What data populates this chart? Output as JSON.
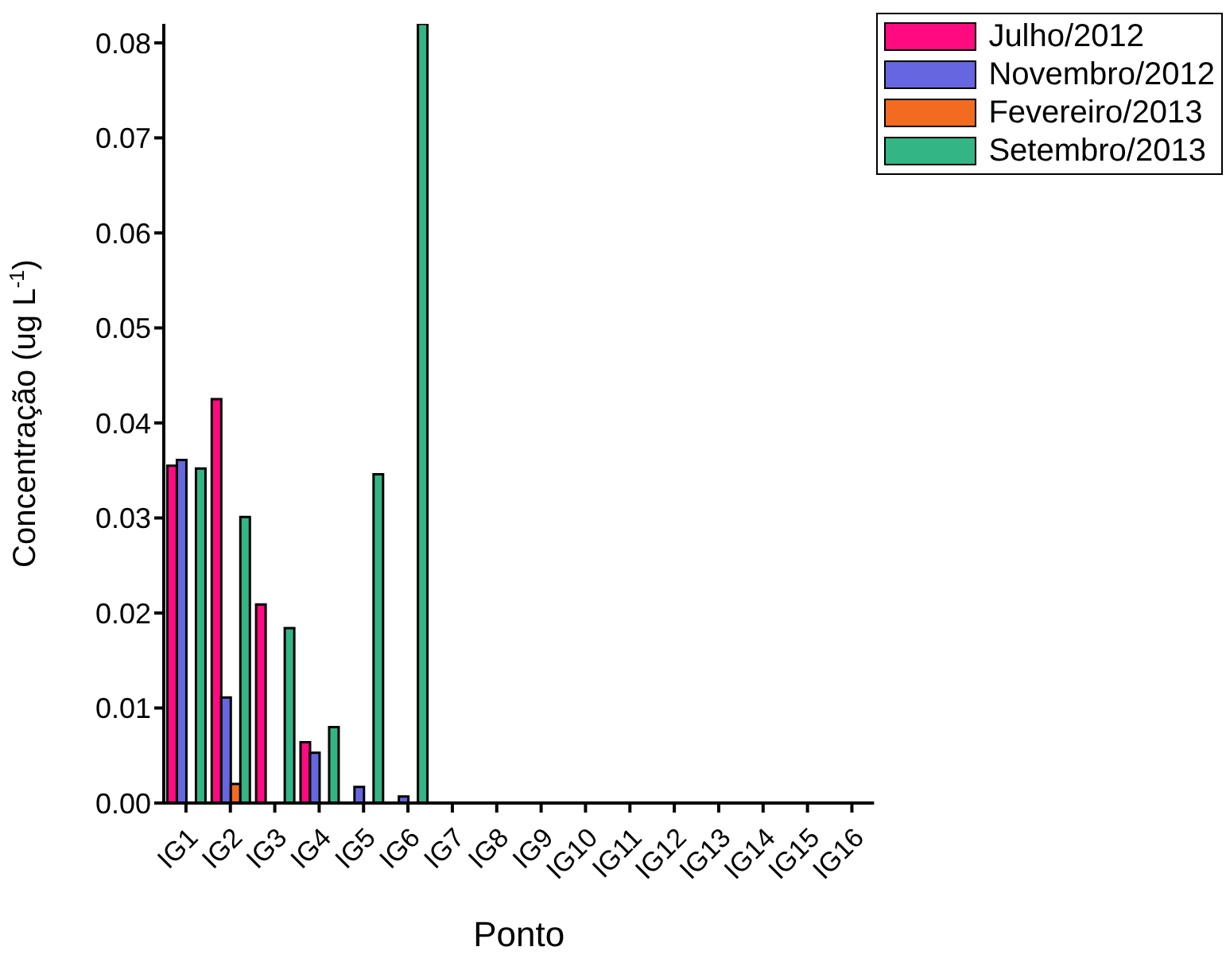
{
  "chart_data": {
    "type": "bar",
    "xlabel": "Ponto",
    "ylabel": "Concentração (ug L$^{-1}$)",
    "categories": [
      "IG1",
      "IG2",
      "IG3",
      "IG4",
      "IG5",
      "IG6",
      "IG7",
      "IG8",
      "IG9",
      "IG10",
      "IG11",
      "IG12",
      "IG13",
      "IG14",
      "IG15",
      "IG16"
    ],
    "series": [
      {
        "name": "Julho/2012",
        "color": "#ff0a80",
        "values": [
          0.0355,
          0.0425,
          0.0209,
          0.0064,
          null,
          null,
          null,
          null,
          null,
          null,
          null,
          null,
          null,
          null,
          null,
          null
        ]
      },
      {
        "name": "Novembro/2012",
        "color": "#6666e0",
        "values": [
          0.0361,
          0.0111,
          null,
          0.0053,
          0.0017,
          0.0007,
          null,
          null,
          null,
          null,
          null,
          null,
          null,
          null,
          null,
          null
        ]
      },
      {
        "name": "Fevereiro/2013",
        "color": "#f26b21",
        "values": [
          null,
          0.002,
          null,
          null,
          null,
          null,
          null,
          null,
          null,
          null,
          null,
          null,
          null,
          null,
          null,
          null
        ]
      },
      {
        "name": "Setembro/2013",
        "color": "#33b586",
        "values": [
          0.0352,
          0.0301,
          0.0184,
          0.008,
          0.0346,
          0.082,
          null,
          null,
          null,
          null,
          null,
          null,
          null,
          null,
          null,
          null
        ]
      }
    ],
    "ylim": [
      0,
      0.082
    ],
    "yticks": [
      {
        "value": 0,
        "label": "0.00"
      },
      {
        "value": 0.01,
        "label": "0.01"
      },
      {
        "value": 0.02,
        "label": "0.02"
      },
      {
        "value": 0.03,
        "label": "0.03"
      },
      {
        "value": 0.04,
        "label": "0.04"
      },
      {
        "value": 0.05,
        "label": "0.05"
      },
      {
        "value": 0.06,
        "label": "0.06"
      },
      {
        "value": 0.07,
        "label": "0.07"
      },
      {
        "value": 0.08,
        "label": "0.08"
      }
    ],
    "grid": false,
    "legend": "top right"
  }
}
